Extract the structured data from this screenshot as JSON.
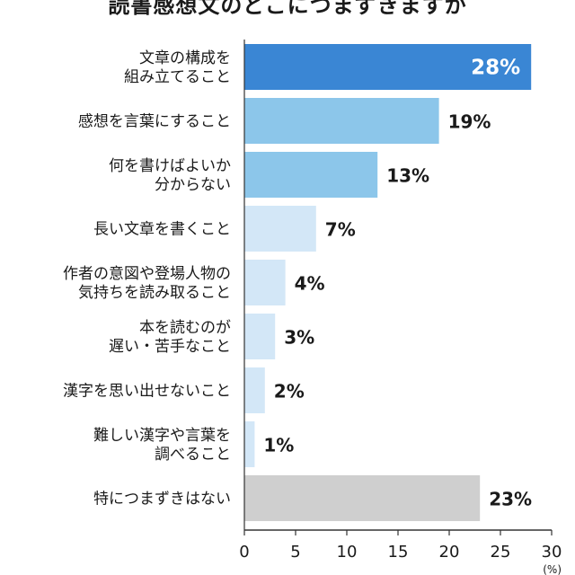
{
  "chart_data": {
    "type": "bar",
    "orientation": "horizontal",
    "title": "読書感想文のどこにつまずきますか",
    "unit": "(%)",
    "categories": [
      "文章の構成を\n組み立てること",
      "感想を言葉にすること",
      "何を書けばよいか\n分からない",
      "長い文章を書くこと",
      "作者の意図や登場人物の\n気持ちを読み取ること",
      "本を読むのが\n遅い・苦手なこと",
      "漢字を思い出せないこと",
      "難しい漢字や言葉を\n調べること",
      "特につまずきはない"
    ],
    "values": [
      28,
      19,
      13,
      7,
      4,
      3,
      2,
      1,
      23
    ],
    "value_labels": [
      "28%",
      "19%",
      "13%",
      "7%",
      "4%",
      "3%",
      "2%",
      "1%",
      "23%"
    ],
    "bar_colors": [
      "#3a86d4",
      "#8cc6ea",
      "#8cc6ea",
      "#d3e7f7",
      "#d3e7f7",
      "#d3e7f7",
      "#d3e7f7",
      "#d3e7f7",
      "#cfcfcf"
    ],
    "xlim": [
      0,
      30
    ],
    "xticks": [
      0,
      5,
      10,
      15,
      20,
      25,
      30
    ],
    "grid": false,
    "legend": "none"
  }
}
